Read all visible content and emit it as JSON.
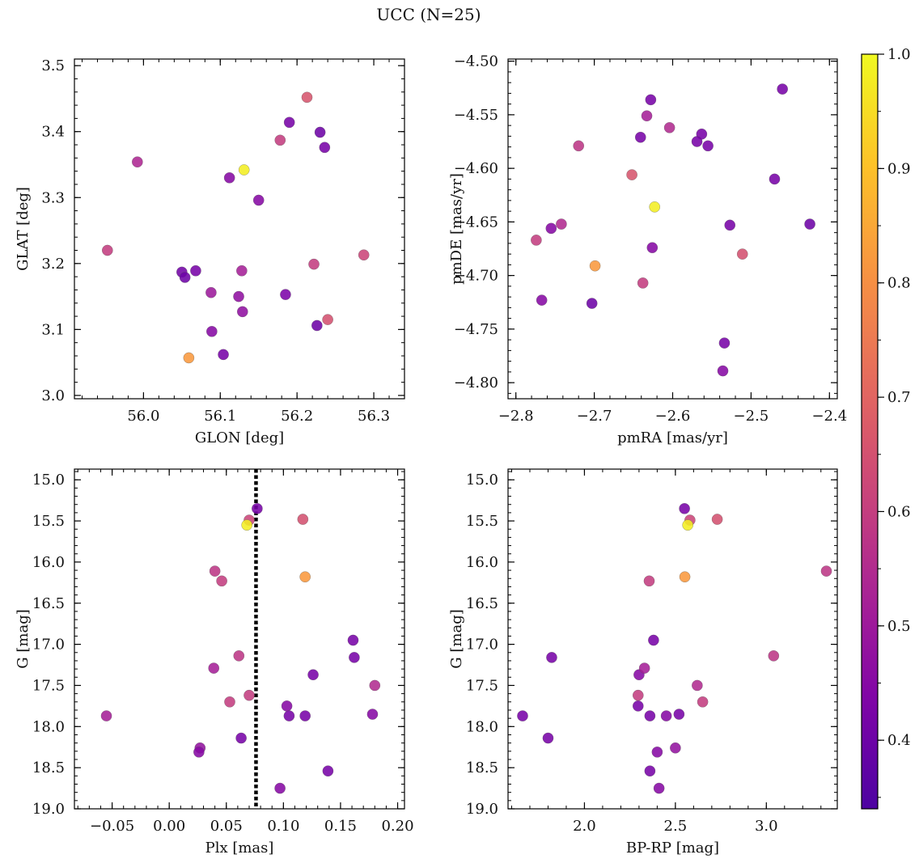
{
  "figure": {
    "title": "UCC (N=25)"
  },
  "colorbar": {
    "vmin": 0.34,
    "vmax": 1.0,
    "cmap": "plasma",
    "ticks": [
      0.4,
      0.5,
      0.6,
      0.7,
      0.8,
      0.9,
      1.0
    ],
    "tick_labels": [
      "0.4",
      "0.5",
      "0.6",
      "0.7",
      "0.8",
      "0.9",
      "1.0"
    ]
  },
  "chart_data": [
    {
      "type": "scatter",
      "id": "glon-glat",
      "title": "",
      "xlabel": "GLON [deg]",
      "ylabel": "GLAT [deg]",
      "xlim": [
        55.91,
        56.34
      ],
      "ylim": [
        2.995,
        3.51
      ],
      "invert_y": false,
      "xticks": [
        56.0,
        56.1,
        56.2,
        56.3
      ],
      "xtick_labels": [
        "56.0",
        "56.1",
        "56.2",
        "56.3"
      ],
      "yticks": [
        3.0,
        3.1,
        3.2,
        3.3,
        3.4,
        3.5
      ],
      "ytick_labels": [
        "3.0",
        "3.1",
        "3.2",
        "3.3",
        "3.4",
        "3.5"
      ],
      "x": [
        56.213,
        56.19,
        56.23,
        56.236,
        56.178,
        55.992,
        56.131,
        56.112,
        56.15,
        55.953,
        56.05,
        56.054,
        56.068,
        56.128,
        56.222,
        56.287,
        56.088,
        56.124,
        56.185,
        56.129,
        56.24,
        56.226,
        56.089,
        56.104,
        56.059
      ],
      "y": [
        3.452,
        3.414,
        3.399,
        3.376,
        3.387,
        3.354,
        3.342,
        3.33,
        3.296,
        3.22,
        3.187,
        3.179,
        3.189,
        3.189,
        3.199,
        3.213,
        3.156,
        3.15,
        3.153,
        3.127,
        3.115,
        3.106,
        3.097,
        3.062,
        3.057
      ],
      "c": [
        0.66,
        0.42,
        0.4,
        0.42,
        0.6,
        0.54,
        0.98,
        0.45,
        0.45,
        0.6,
        0.41,
        0.4,
        0.42,
        0.52,
        0.6,
        0.62,
        0.5,
        0.47,
        0.43,
        0.47,
        0.65,
        0.4,
        0.45,
        0.42,
        0.82
      ]
    },
    {
      "type": "scatter",
      "id": "pm",
      "title": "",
      "xlabel": "pmRA [mas/yr]",
      "ylabel": "pmDE [mas/yr]",
      "xlim": [
        -2.81,
        -2.39
      ],
      "ylim": [
        -4.815,
        -4.498
      ],
      "invert_y": false,
      "xticks": [
        -2.8,
        -2.7,
        -2.6,
        -2.5,
        -2.4
      ],
      "xtick_labels": [
        "−2.8",
        "−2.7",
        "−2.6",
        "−2.5",
        "−2.4"
      ],
      "yticks": [
        -4.8,
        -4.75,
        -4.7,
        -4.65,
        -4.6,
        -4.55,
        -4.5
      ],
      "ytick_labels": [
        "−4.80",
        "−4.75",
        "−4.70",
        "−4.65",
        "−4.60",
        "−4.55",
        "−4.50"
      ],
      "x": [
        -2.46,
        -2.628,
        -2.633,
        -2.641,
        -2.604,
        -2.563,
        -2.569,
        -2.555,
        -2.72,
        -2.652,
        -2.47,
        -2.425,
        -2.623,
        -2.742,
        -2.755,
        -2.774,
        -2.527,
        -2.626,
        -2.511,
        -2.699,
        -2.638,
        -2.767,
        -2.703,
        -2.534,
        -2.536
      ],
      "y": [
        -4.526,
        -4.536,
        -4.551,
        -4.571,
        -4.562,
        -4.568,
        -4.575,
        -4.579,
        -4.579,
        -4.606,
        -4.61,
        -4.652,
        -4.636,
        -4.652,
        -4.656,
        -4.667,
        -4.653,
        -4.674,
        -4.68,
        -4.691,
        -4.707,
        -4.723,
        -4.726,
        -4.763,
        -4.789
      ],
      "c": [
        0.42,
        0.42,
        0.52,
        0.42,
        0.55,
        0.42,
        0.42,
        0.42,
        0.58,
        0.66,
        0.42,
        0.4,
        0.98,
        0.55,
        0.45,
        0.6,
        0.42,
        0.45,
        0.65,
        0.82,
        0.6,
        0.45,
        0.4,
        0.42,
        0.45
      ]
    },
    {
      "type": "scatter",
      "id": "plx-g",
      "title": "",
      "xlabel": "Plx [mas]",
      "ylabel": "G [mag]",
      "xlim": [
        -0.083,
        0.206
      ],
      "ylim": [
        14.87,
        19.0
      ],
      "invert_y": true,
      "vline": {
        "x": 0.076,
        "style": "dotted",
        "color": "#000000"
      },
      "xticks": [
        -0.05,
        0.0,
        0.05,
        0.1,
        0.15,
        0.2
      ],
      "xtick_labels": [
        "−0.05",
        "0.00",
        "0.05",
        "0.10",
        "0.15",
        "0.20"
      ],
      "yticks": [
        15.0,
        15.5,
        16.0,
        16.5,
        17.0,
        17.5,
        18.0,
        18.5,
        19.0
      ],
      "ytick_labels": [
        "15.0",
        "15.5",
        "16.0",
        "16.5",
        "17.0",
        "17.5",
        "18.0",
        "18.5",
        "19.0"
      ],
      "x": [
        0.077,
        0.07,
        0.068,
        0.117,
        0.119,
        0.04,
        0.046,
        0.161,
        0.162,
        0.061,
        0.039,
        0.126,
        0.18,
        0.053,
        0.07,
        0.103,
        -0.055,
        0.105,
        0.119,
        0.178,
        0.063,
        0.027,
        0.026,
        0.139,
        0.097
      ],
      "y": [
        15.35,
        15.49,
        15.55,
        15.48,
        16.18,
        16.11,
        16.23,
        16.95,
        17.16,
        17.14,
        17.29,
        17.37,
        17.5,
        17.7,
        17.62,
        17.75,
        17.87,
        17.87,
        17.87,
        17.85,
        18.14,
        18.26,
        18.31,
        18.54,
        18.75
      ],
      "c": [
        0.42,
        0.62,
        0.98,
        0.65,
        0.82,
        0.58,
        0.6,
        0.42,
        0.42,
        0.58,
        0.52,
        0.42,
        0.55,
        0.6,
        0.6,
        0.45,
        0.52,
        0.42,
        0.42,
        0.45,
        0.42,
        0.48,
        0.45,
        0.42,
        0.45
      ]
    },
    {
      "type": "scatter",
      "id": "bprp-g",
      "title": "",
      "xlabel": "BP-RP [mag]",
      "ylabel": "G [mag]",
      "xlim": [
        1.58,
        3.39
      ],
      "ylim": [
        14.87,
        19.0
      ],
      "invert_y": true,
      "xticks": [
        2.0,
        2.5,
        3.0
      ],
      "xtick_labels": [
        "2.0",
        "2.5",
        "3.0"
      ],
      "yticks": [
        15.0,
        15.5,
        16.0,
        16.5,
        17.0,
        17.5,
        18.0,
        18.5,
        19.0
      ],
      "ytick_labels": [
        "15.0",
        "15.5",
        "16.0",
        "16.5",
        "17.0",
        "17.5",
        "18.0",
        "18.5",
        "19.0"
      ],
      "x": [
        2.55,
        2.58,
        2.568,
        2.73,
        2.552,
        2.356,
        3.33,
        2.38,
        1.82,
        3.04,
        2.3,
        2.33,
        2.62,
        2.65,
        2.295,
        2.295,
        1.66,
        2.36,
        2.45,
        2.52,
        1.8,
        2.5,
        2.4,
        2.36,
        2.41
      ],
      "y": [
        15.35,
        15.49,
        15.55,
        15.48,
        16.18,
        16.23,
        16.11,
        16.95,
        17.16,
        17.14,
        17.37,
        17.29,
        17.5,
        17.7,
        17.62,
        17.75,
        17.87,
        17.87,
        17.87,
        17.85,
        18.14,
        18.26,
        18.31,
        18.54,
        18.75
      ],
      "c": [
        0.42,
        0.62,
        0.98,
        0.65,
        0.82,
        0.6,
        0.58,
        0.42,
        0.42,
        0.58,
        0.45,
        0.52,
        0.55,
        0.6,
        0.6,
        0.42,
        0.42,
        0.42,
        0.45,
        0.42,
        0.42,
        0.48,
        0.45,
        0.42,
        0.45
      ]
    }
  ]
}
